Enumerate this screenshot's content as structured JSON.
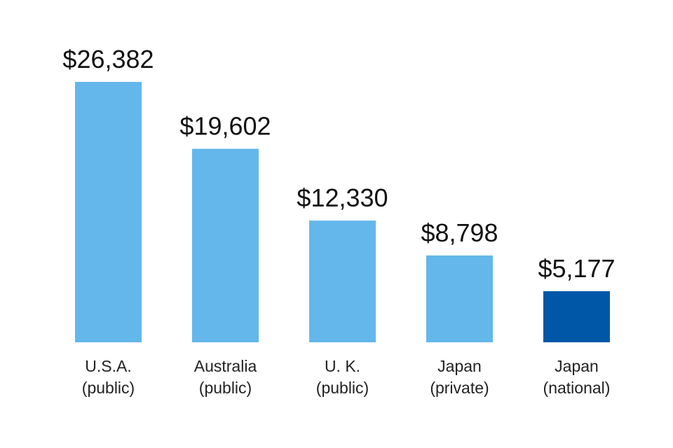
{
  "chart_data": {
    "type": "bar",
    "title": "",
    "xlabel": "",
    "ylabel": "",
    "ylim": [
      0,
      26382
    ],
    "grid": false,
    "categories": [
      {
        "line1": "U.S.A.",
        "line2": "(public)"
      },
      {
        "line1": "Australia",
        "line2": "(public)"
      },
      {
        "line1": "U. K.",
        "line2": "(public)"
      },
      {
        "line1": "Japan",
        "line2": "(private)"
      },
      {
        "line1": "Japan",
        "line2": "(national)"
      }
    ],
    "values": [
      26382,
      19602,
      12330,
      8798,
      5177
    ],
    "value_labels": [
      "$26,382",
      "$19,602",
      "$12,330",
      "$8,798",
      "$5,177"
    ],
    "bar_colors": [
      "#63b7ea",
      "#63b7ea",
      "#63b7ea",
      "#63b7ea",
      "#0057a8"
    ]
  }
}
